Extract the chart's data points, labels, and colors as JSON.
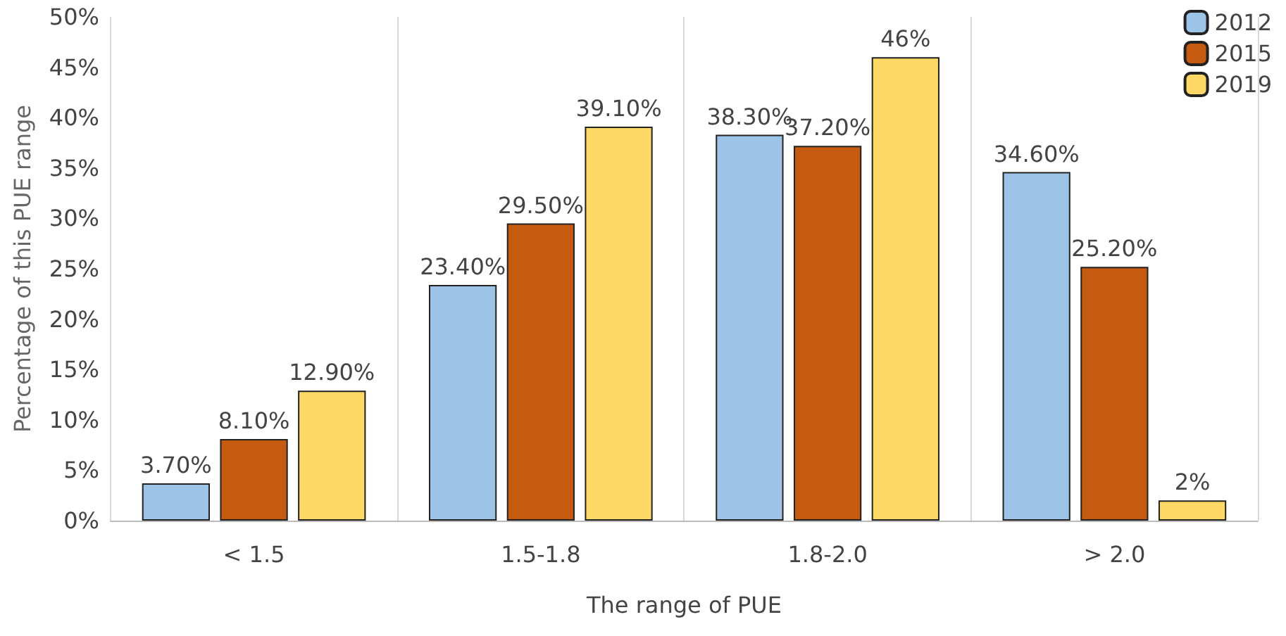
{
  "chart_data": {
    "type": "bar",
    "xlabel": "The range of PUE",
    "ylabel": "Percentage of this PUE range",
    "categories": [
      "< 1.5",
      "1.5-1.8",
      "1.8-2.0",
      "> 2.0"
    ],
    "series": [
      {
        "name": "2012",
        "color": "#9dc3e6",
        "values": [
          3.7,
          23.4,
          38.3,
          34.6
        ],
        "value_labels": [
          "3.70%",
          "23.40%",
          "38.30%",
          "34.60%"
        ]
      },
      {
        "name": "2015",
        "color": "#c55a11",
        "values": [
          8.1,
          29.5,
          37.2,
          25.2
        ],
        "value_labels": [
          "8.10%",
          "29.50%",
          "37.20%",
          "25.20%"
        ]
      },
      {
        "name": "2019",
        "color": "#ffd966",
        "values": [
          12.9,
          39.1,
          46,
          2
        ],
        "value_labels": [
          "12.90%",
          "39.10%",
          "46%",
          "2%"
        ]
      }
    ],
    "ylim": [
      0,
      50
    ],
    "yticks": [
      {
        "value": 0,
        "label": "0%"
      },
      {
        "value": 5,
        "label": "5%"
      },
      {
        "value": 10,
        "label": "10%"
      },
      {
        "value": 15,
        "label": "15%"
      },
      {
        "value": 20,
        "label": "20%"
      },
      {
        "value": 25,
        "label": "25%"
      },
      {
        "value": 30,
        "label": "30%"
      },
      {
        "value": 35,
        "label": "35%"
      },
      {
        "value": 40,
        "label": "40%"
      },
      {
        "value": 45,
        "label": "45%"
      },
      {
        "value": 50,
        "label": "50%"
      }
    ],
    "grid": "x",
    "legend": "top right"
  }
}
